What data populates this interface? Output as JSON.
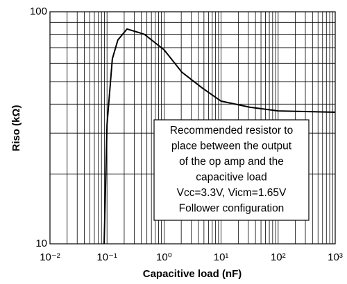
{
  "chart_data": {
    "type": "line",
    "x_label": "Capacitive load (nF)",
    "y_label": "Riso (kΩ)",
    "x": [
      0.089,
      0.1,
      0.124,
      0.155,
      0.224,
      0.314,
      0.45,
      1,
      2.04,
      4.7,
      10,
      31.8,
      100,
      1000
    ],
    "series": [
      {
        "color": "#000000",
        "values": [
          10,
          32.6,
          62.7,
          75.6,
          84.3,
          82.2,
          80,
          68.6,
          55,
          46.9,
          41.2,
          38.8,
          37.4,
          36.9
        ]
      }
    ],
    "xlim": [
      0.01,
      1000
    ],
    "ylim": [
      10,
      100
    ],
    "xticks": [
      {
        "value": 0.01,
        "label": "10⁻²"
      },
      {
        "value": 0.1,
        "label": "10⁻¹"
      },
      {
        "value": 1,
        "label": "10⁰"
      },
      {
        "value": 10,
        "label": "10¹"
      },
      {
        "value": 100,
        "label": "10²"
      },
      {
        "value": 1000,
        "label": "10³"
      }
    ],
    "yticks": [
      10,
      100
    ],
    "xlog": true,
    "ylog": true,
    "grid": true,
    "minor_grid": true,
    "annotation": [
      "Recommended resistor to",
      "place between the output",
      "of the op amp and the",
      "capacitive load",
      "Vcc=3.3V, Vicm=1.65V",
      "Follower configuration"
    ]
  }
}
